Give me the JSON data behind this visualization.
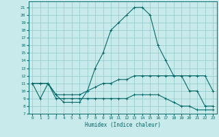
{
  "xlabel": "Humidex (Indice chaleur)",
  "xlim": [
    -0.5,
    23.5
  ],
  "ylim": [
    7,
    21.8
  ],
  "yticks": [
    7,
    8,
    9,
    10,
    11,
    12,
    13,
    14,
    15,
    16,
    17,
    18,
    19,
    20,
    21
  ],
  "xticks": [
    0,
    1,
    2,
    3,
    4,
    5,
    6,
    7,
    8,
    9,
    10,
    11,
    12,
    13,
    14,
    15,
    16,
    17,
    18,
    19,
    20,
    21,
    22,
    23
  ],
  "bg_color": "#c8eaea",
  "grid_color": "#90c8c8",
  "line_color": "#006868",
  "line1_x": [
    0,
    1,
    2,
    3,
    4,
    5,
    6,
    7,
    8,
    9,
    10,
    11,
    12,
    13,
    14,
    15,
    16,
    17,
    18,
    19,
    20,
    21,
    22,
    23
  ],
  "line1_y": [
    11,
    9,
    11,
    9.5,
    8.5,
    8.5,
    8.5,
    10.0,
    13,
    15,
    18,
    19,
    20,
    21,
    21,
    20,
    16,
    14,
    12,
    12,
    10,
    10,
    8,
    8
  ],
  "line2_x": [
    0,
    1,
    2,
    3,
    4,
    5,
    6,
    7,
    8,
    9,
    10,
    11,
    12,
    13,
    14,
    15,
    16,
    17,
    18,
    19,
    20,
    21,
    22,
    23
  ],
  "line2_y": [
    11,
    11,
    11,
    9.5,
    9.5,
    9.5,
    9.5,
    10,
    10.5,
    11,
    11,
    11.5,
    11.5,
    12,
    12,
    12,
    12,
    12,
    12,
    12,
    12,
    12,
    12,
    10
  ],
  "line3_x": [
    0,
    1,
    2,
    3,
    4,
    5,
    6,
    7,
    8,
    9,
    10,
    11,
    12,
    13,
    14,
    15,
    16,
    17,
    18,
    19,
    20,
    21,
    22,
    23
  ],
  "line3_y": [
    11,
    11,
    11,
    9,
    9,
    9,
    9,
    9,
    9,
    9,
    9,
    9,
    9,
    9.5,
    9.5,
    9.5,
    9.5,
    9,
    8.5,
    8,
    8,
    7.5,
    7.5,
    7.5
  ]
}
